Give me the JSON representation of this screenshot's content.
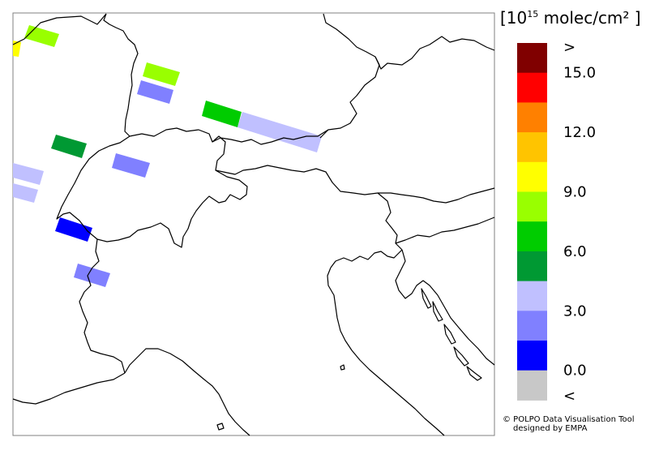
{
  "legend": {
    "unit_prefix": "[10",
    "unit_exponent": "15",
    "unit_suffix": " molec/cm² ]",
    "entries": [
      {
        "label": ">",
        "color": "#800000"
      },
      {
        "label": "",
        "color": "#ff0000"
      },
      {
        "label": "15.0",
        "color": "#ff8000"
      },
      {
        "label": "",
        "color": "#ffc400"
      },
      {
        "label": "12.0",
        "color": "#ffff00"
      },
      {
        "label": "",
        "color": "#99ff00"
      },
      {
        "label": "9.0",
        "color": "#00cc00"
      },
      {
        "label": "",
        "color": "#009933"
      },
      {
        "label": "6.0",
        "color": "#c0c0ff"
      },
      {
        "label": "",
        "color": "#8080ff"
      },
      {
        "label": "3.0",
        "color": "#0000ff"
      },
      {
        "label": "",
        "color": "#c8c8c8"
      },
      {
        "label": "0.0",
        "color": null
      },
      {
        "label": "<",
        "color": null
      }
    ]
  },
  "credit": {
    "line1": "© POLPO Data Visualisation Tool",
    "line2": "designed by EMPA"
  },
  "colors": {
    "coastline": "#000000",
    "frame": "#808080",
    "background": "#ffffff"
  },
  "icons": [
    "copyright-icon"
  ]
}
